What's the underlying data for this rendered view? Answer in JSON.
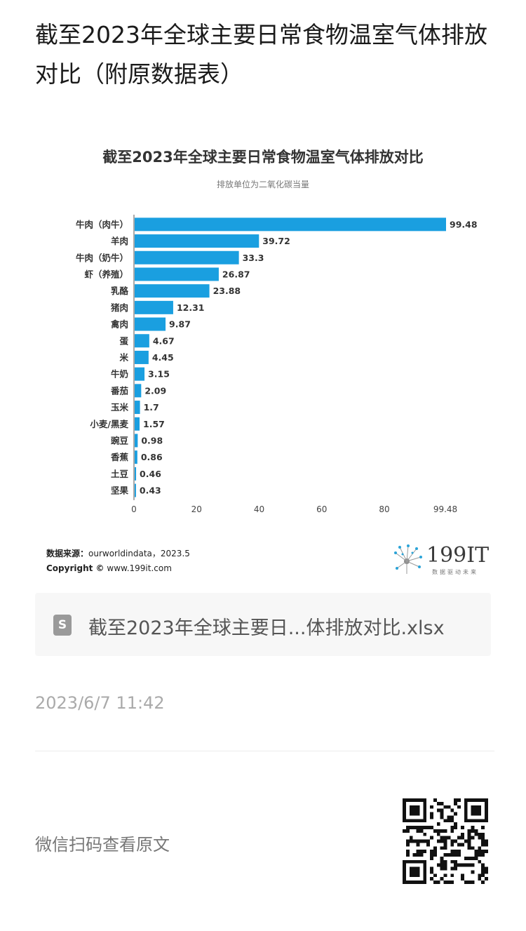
{
  "article": {
    "title": "截至2023年全球主要日常食物温室气体排放对比（附原数据表）"
  },
  "figure": {
    "source_label": "数据来源：",
    "source_text": "ourworldindata，2023.5",
    "copyright_label": "Copyright ©",
    "copyright_text": "www.199it.com",
    "logo_text": "199IT",
    "logo_tagline": "数据驱动未来"
  },
  "chart_data": {
    "type": "bar",
    "orientation": "horizontal",
    "title": "截至2023年全球主要日常食物温室气体排放对比",
    "subtitle": "排放单位为二氧化碳当量",
    "categories": [
      "牛肉（肉牛）",
      "羊肉",
      "牛肉（奶牛）",
      "虾（养殖）",
      "乳酪",
      "猪肉",
      "禽肉",
      "蛋",
      "米",
      "牛奶",
      "番茄",
      "玉米",
      "小麦/黑麦",
      "豌豆",
      "香蕉",
      "土豆",
      "坚果"
    ],
    "values": [
      99.48,
      39.72,
      33.3,
      26.87,
      23.88,
      12.31,
      9.87,
      4.67,
      4.45,
      3.15,
      2.09,
      1.7,
      1.57,
      0.98,
      0.86,
      0.46,
      0.43
    ],
    "value_labels": [
      "99.48",
      "39.72",
      "33.3",
      "26.87",
      "23.88",
      "12.31",
      "9.87",
      "4.67",
      "4.45",
      "3.15",
      "2.09",
      "1.7",
      "1.57",
      "0.98",
      "0.86",
      "0.46",
      "0.43"
    ],
    "x_ticks": [
      0,
      20,
      40,
      60,
      80,
      99.48
    ],
    "xlim": [
      0,
      99.48
    ],
    "bar_color": "#1a9fe0",
    "grid": false,
    "legend": "none"
  },
  "file": {
    "name": "截至2023年全球主要日...体排放对比.xlsx",
    "icon": "spreadsheet-file-icon",
    "icon_glyph": "S"
  },
  "meta": {
    "timestamp": "2023/6/7 11:42"
  },
  "footer": {
    "wechat_text": "微信扫码查看原文",
    "qr_icon": "qr-code-icon"
  }
}
